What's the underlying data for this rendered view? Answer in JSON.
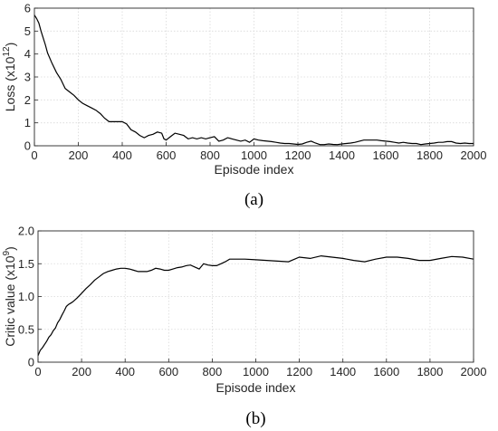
{
  "chart_data": [
    {
      "type": "line",
      "xlabel": "Episode index",
      "ylabel": "Loss (x10^12)",
      "ylabel_base": "Loss (x10",
      "ylabel_exp": "12",
      "ylabel_close": ")",
      "caption": "(a)",
      "xlim": [
        0,
        2000
      ],
      "ylim": [
        0,
        6
      ],
      "xticks": [
        0,
        200,
        400,
        600,
        800,
        1000,
        1200,
        1400,
        1600,
        1800,
        2000
      ],
      "yticks": [
        0,
        1,
        2,
        3,
        4,
        5,
        6
      ],
      "ytick_labels": [
        "0",
        "1",
        "2",
        "3",
        "4",
        "5",
        "6"
      ],
      "grid": true,
      "series": [
        {
          "x": [
            0,
            10,
            20,
            30,
            40,
            50,
            60,
            80,
            100,
            120,
            140,
            160,
            180,
            200,
            220,
            240,
            260,
            280,
            300,
            320,
            340,
            360,
            380,
            400,
            420,
            440,
            460,
            480,
            500,
            520,
            540,
            560,
            580,
            590,
            600,
            620,
            640,
            660,
            680,
            700,
            720,
            740,
            760,
            780,
            800,
            820,
            840,
            860,
            880,
            900,
            920,
            940,
            960,
            980,
            1000,
            1020,
            1040,
            1060,
            1080,
            1100,
            1120,
            1140,
            1160,
            1180,
            1200,
            1220,
            1240,
            1260,
            1280,
            1300,
            1320,
            1340,
            1360,
            1380,
            1400,
            1420,
            1440,
            1460,
            1480,
            1500,
            1520,
            1540,
            1560,
            1580,
            1600,
            1620,
            1640,
            1660,
            1680,
            1700,
            1720,
            1740,
            1760,
            1780,
            1800,
            1820,
            1840,
            1860,
            1880,
            1900,
            1920,
            1940,
            1960,
            1980,
            2000
          ],
          "y": [
            5.7,
            5.55,
            5.35,
            5.0,
            4.7,
            4.4,
            4.05,
            3.6,
            3.2,
            2.9,
            2.5,
            2.35,
            2.2,
            2.0,
            1.85,
            1.75,
            1.65,
            1.55,
            1.4,
            1.2,
            1.05,
            1.05,
            1.05,
            1.05,
            0.95,
            0.7,
            0.6,
            0.45,
            0.35,
            0.45,
            0.5,
            0.6,
            0.55,
            0.3,
            0.25,
            0.4,
            0.55,
            0.5,
            0.45,
            0.3,
            0.35,
            0.3,
            0.35,
            0.3,
            0.35,
            0.4,
            0.2,
            0.25,
            0.35,
            0.3,
            0.25,
            0.2,
            0.25,
            0.15,
            0.3,
            0.25,
            0.22,
            0.2,
            0.18,
            0.15,
            0.12,
            0.1,
            0.1,
            0.08,
            0.06,
            0.08,
            0.15,
            0.2,
            0.12,
            0.05,
            0.05,
            0.08,
            0.06,
            0.05,
            0.08,
            0.1,
            0.12,
            0.15,
            0.2,
            0.25,
            0.25,
            0.25,
            0.25,
            0.22,
            0.2,
            0.18,
            0.15,
            0.12,
            0.15,
            0.12,
            0.1,
            0.1,
            0.05,
            0.08,
            0.1,
            0.12,
            0.15,
            0.15,
            0.18,
            0.18,
            0.12,
            0.1,
            0.12,
            0.1,
            0.1
          ]
        }
      ]
    },
    {
      "type": "line",
      "xlabel": "Episode index",
      "ylabel": "Critic value (x10^9)",
      "ylabel_base": "Critic value (x10",
      "ylabel_exp": "9",
      "ylabel_close": ")",
      "caption": "(b)",
      "xlim": [
        0,
        2000
      ],
      "ylim": [
        0,
        2.0
      ],
      "xticks": [
        0,
        200,
        400,
        600,
        800,
        1000,
        1200,
        1400,
        1600,
        1800,
        2000
      ],
      "yticks": [
        0,
        0.5,
        1.0,
        1.5,
        2.0
      ],
      "ytick_labels": [
        "0",
        "0.5",
        "1.0",
        "1.5",
        "2.0"
      ],
      "grid": true,
      "series": [
        {
          "x": [
            0,
            10,
            20,
            30,
            40,
            50,
            60,
            70,
            80,
            90,
            100,
            110,
            120,
            130,
            140,
            150,
            160,
            180,
            200,
            220,
            240,
            260,
            280,
            300,
            320,
            340,
            360,
            380,
            400,
            420,
            440,
            460,
            480,
            500,
            520,
            540,
            560,
            580,
            600,
            620,
            640,
            660,
            680,
            700,
            720,
            740,
            760,
            780,
            800,
            820,
            840,
            860,
            880,
            900,
            950,
            1000,
            1050,
            1100,
            1150,
            1200,
            1250,
            1300,
            1350,
            1400,
            1450,
            1500,
            1550,
            1600,
            1650,
            1700,
            1750,
            1800,
            1850,
            1900,
            1950,
            2000
          ],
          "y": [
            0.1,
            0.18,
            0.22,
            0.27,
            0.32,
            0.38,
            0.42,
            0.48,
            0.52,
            0.6,
            0.65,
            0.72,
            0.78,
            0.85,
            0.88,
            0.9,
            0.92,
            0.98,
            1.05,
            1.12,
            1.18,
            1.25,
            1.3,
            1.35,
            1.38,
            1.4,
            1.42,
            1.43,
            1.43,
            1.42,
            1.4,
            1.38,
            1.38,
            1.38,
            1.4,
            1.43,
            1.42,
            1.4,
            1.4,
            1.42,
            1.44,
            1.45,
            1.47,
            1.48,
            1.45,
            1.42,
            1.5,
            1.48,
            1.47,
            1.47,
            1.5,
            1.53,
            1.57,
            1.57,
            1.57,
            1.56,
            1.55,
            1.54,
            1.53,
            1.6,
            1.58,
            1.62,
            1.6,
            1.58,
            1.55,
            1.53,
            1.57,
            1.6,
            1.6,
            1.58,
            1.55,
            1.55,
            1.58,
            1.61,
            1.6,
            1.57
          ]
        }
      ]
    }
  ]
}
